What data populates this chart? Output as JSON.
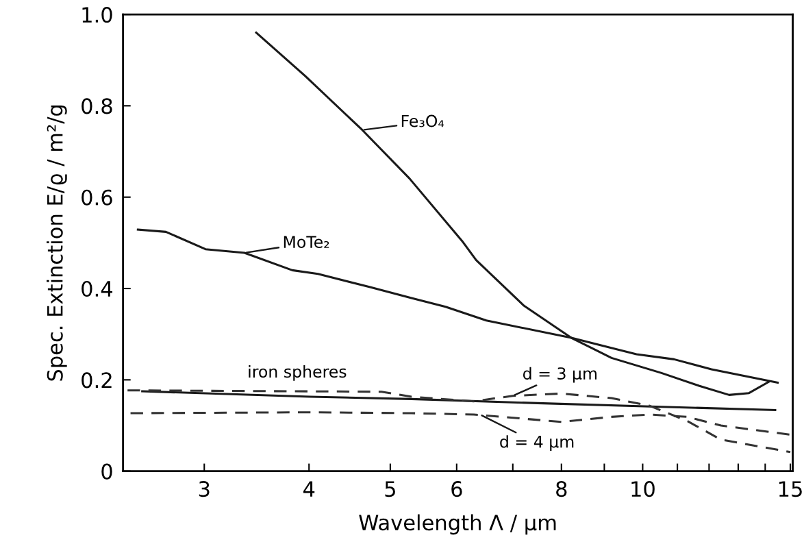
{
  "chart_data": {
    "type": "line",
    "xlabel": "Wavelength Λ / µm",
    "ylabel": "Spec. Extinction E/ϱ / m²/g",
    "log": "x",
    "xlim": [
      2.4,
      15.1
    ],
    "ylim": [
      0,
      1
    ],
    "xticks": [
      3,
      4,
      5,
      6,
      {
        "value": 7,
        "label": null
      },
      8,
      {
        "value": 9,
        "label": null
      },
      10,
      {
        "value": 11,
        "label": null
      },
      {
        "value": 12,
        "label": null
      },
      {
        "value": 13,
        "label": null
      },
      {
        "value": 14,
        "label": null
      },
      15
    ],
    "yticks": [
      0,
      0.2,
      0.4,
      0.6,
      0.8,
      {
        "value": 1,
        "label": "1.0"
      }
    ],
    "grid": false,
    "legend": false,
    "marker": "none",
    "series": [
      {
        "color": "#1a1a1a",
        "line_style": "solid",
        "x": [
          3.46,
          3.96,
          4.63,
          5.27,
          6.09,
          6.33,
          7.21,
          8.22,
          9.18,
          10.53,
          11.67,
          12.68,
          13.39,
          14.15
        ],
        "values": [
          0.96,
          0.865,
          0.747,
          0.641,
          0.504,
          0.462,
          0.363,
          0.292,
          0.248,
          0.215,
          0.187,
          0.167,
          0.171,
          0.196
        ]
      },
      {
        "color": "#1a1a1a",
        "line_style": "solid",
        "x": [
          2.5,
          2.7,
          3.01,
          3.35,
          3.82,
          4.1,
          4.73,
          5.3,
          5.82,
          6.51,
          8.22,
          9.83,
          10.9,
          12.08,
          14.49
        ],
        "values": [
          0.529,
          0.524,
          0.486,
          0.478,
          0.44,
          0.432,
          0.403,
          0.379,
          0.36,
          0.33,
          0.292,
          0.256,
          0.245,
          0.223,
          0.194
        ]
      },
      {
        "color": "#1a1a1a",
        "line_style": "solid",
        "x": [
          2.53,
          4.01,
          5.3,
          7.49,
          10.53,
          14.39
        ],
        "values": [
          0.175,
          0.163,
          0.158,
          0.149,
          0.141,
          0.134
        ]
      },
      {
        "color": "#333333",
        "line_style": "dashed",
        "x": [
          2.43,
          4.88,
          5.3,
          6.29,
          7.0,
          8.0,
          9.18,
          10.2,
          11.3,
          12.4,
          15.0
        ],
        "values": [
          0.177,
          0.174,
          0.163,
          0.153,
          0.165,
          0.17,
          0.16,
          0.143,
          0.11,
          0.069,
          0.042
        ]
      },
      {
        "color": "#333333",
        "line_style": "dashed",
        "x": [
          2.45,
          4.01,
          5.3,
          6.29,
          8.0,
          9.18,
          10.2,
          11.3,
          12.4,
          15.0
        ],
        "values": [
          0.127,
          0.129,
          0.127,
          0.124,
          0.108,
          0.119,
          0.124,
          0.119,
          0.1,
          0.08
        ]
      }
    ],
    "annotations": [
      {
        "text": "Fe₃O₄",
        "x": 4.63,
        "y": 0.747
      },
      {
        "text": "MoTe₂",
        "x": 3.35,
        "y": 0.478
      },
      "iron spheres",
      {
        "text": "d = 3 µm",
        "x": 7.0,
        "y": 0.165
      },
      {
        "text": "d = 4 µm",
        "x": 6.4,
        "y": 0.124
      }
    ]
  }
}
